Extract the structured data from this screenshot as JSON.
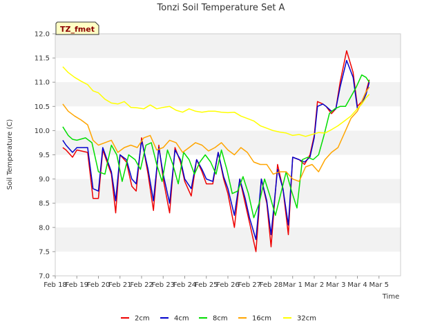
{
  "chart_data": {
    "type": "line",
    "title": "Tonzi Soil Temperature Set A",
    "xlabel": "Time",
    "ylabel": "Soil Temperature (C)",
    "badge": "TZ_fmet",
    "ylim": [
      7.0,
      12.0
    ],
    "yticks": [
      "7.0",
      "7.5",
      "8.0",
      "8.5",
      "9.0",
      "9.5",
      "10.0",
      "10.5",
      "11.0",
      "11.5",
      "12.0"
    ],
    "xlim": [
      0,
      16
    ],
    "xticks": [
      "Feb 18",
      "Feb 19",
      "Feb 20",
      "Feb 21",
      "Feb 22",
      "Feb 23",
      "Feb 24",
      "Feb 25",
      "Feb 26",
      "Feb 27",
      "Feb 28",
      "Mar 1",
      "Mar 2",
      "Mar 3",
      "Mar 4",
      "Mar 5"
    ],
    "grid": "horizontal bands",
    "legend_position": "bottom",
    "series": [
      {
        "name": "2cm",
        "color": "#ee0000",
        "x": [
          0.35,
          0.5,
          0.8,
          1.0,
          1.5,
          1.75,
          2.0,
          2.2,
          2.6,
          2.8,
          3.0,
          3.3,
          3.55,
          3.75,
          4.0,
          4.3,
          4.55,
          4.8,
          5.0,
          5.3,
          5.55,
          5.8,
          6.0,
          6.3,
          6.55,
          6.8,
          7.0,
          7.3,
          7.55,
          7.8,
          8.0,
          8.3,
          8.55,
          8.8,
          9.0,
          9.3,
          9.55,
          9.8,
          10.0,
          10.3,
          10.55,
          10.8,
          11.0,
          11.3,
          11.55,
          11.8,
          12.0,
          12.15,
          12.4,
          12.55,
          12.8,
          13.0,
          13.2,
          13.5,
          13.8,
          14.0,
          14.2,
          14.4,
          14.55
        ],
        "y": [
          9.65,
          9.6,
          9.45,
          9.6,
          9.55,
          8.6,
          8.6,
          9.6,
          9.1,
          8.3,
          9.5,
          9.35,
          8.85,
          8.75,
          9.85,
          9.1,
          8.35,
          9.7,
          9.0,
          8.3,
          9.65,
          9.35,
          8.95,
          8.65,
          9.4,
          9.15,
          8.9,
          8.9,
          9.55,
          9.0,
          8.7,
          8.0,
          9.0,
          8.5,
          8.1,
          7.5,
          9.0,
          8.5,
          7.6,
          9.3,
          8.8,
          7.85,
          9.45,
          9.4,
          9.3,
          9.5,
          9.9,
          10.6,
          10.55,
          10.5,
          10.35,
          10.45,
          11.0,
          11.65,
          11.2,
          10.5,
          10.6,
          10.8,
          11.05
        ]
      },
      {
        "name": "4cm",
        "color": "#0000cc",
        "x": [
          0.35,
          0.5,
          0.8,
          1.0,
          1.5,
          1.75,
          2.0,
          2.2,
          2.6,
          2.8,
          3.0,
          3.3,
          3.55,
          3.75,
          4.0,
          4.3,
          4.55,
          4.8,
          5.0,
          5.3,
          5.55,
          5.8,
          6.0,
          6.3,
          6.55,
          6.8,
          7.0,
          7.3,
          7.55,
          7.8,
          8.0,
          8.3,
          8.55,
          8.8,
          9.0,
          9.3,
          9.55,
          9.8,
          10.0,
          10.3,
          10.55,
          10.8,
          11.0,
          11.3,
          11.55,
          11.8,
          12.0,
          12.15,
          12.4,
          12.55,
          12.8,
          13.0,
          13.2,
          13.5,
          13.8,
          14.0,
          14.2,
          14.4,
          14.55
        ],
        "y": [
          9.8,
          9.7,
          9.55,
          9.65,
          9.65,
          8.8,
          8.75,
          9.65,
          9.15,
          8.55,
          9.5,
          9.4,
          9.0,
          8.9,
          9.8,
          9.2,
          8.55,
          9.65,
          9.1,
          8.5,
          9.6,
          9.4,
          9.0,
          8.8,
          9.4,
          9.2,
          9.0,
          8.95,
          9.55,
          9.05,
          8.8,
          8.25,
          9.0,
          8.6,
          8.2,
          7.75,
          9.0,
          8.55,
          7.85,
          9.2,
          8.8,
          8.05,
          9.45,
          9.4,
          9.35,
          9.45,
          9.85,
          10.5,
          10.55,
          10.5,
          10.4,
          10.45,
          10.9,
          11.45,
          11.1,
          10.45,
          10.55,
          10.75,
          11.0
        ]
      },
      {
        "name": "8cm",
        "color": "#00dd00",
        "x": [
          0.35,
          0.6,
          0.8,
          1.0,
          1.4,
          1.7,
          2.0,
          2.3,
          2.6,
          2.85,
          3.1,
          3.4,
          3.7,
          3.95,
          4.2,
          4.45,
          4.7,
          4.95,
          5.2,
          5.45,
          5.7,
          5.95,
          6.2,
          6.45,
          6.7,
          6.95,
          7.2,
          7.45,
          7.7,
          7.95,
          8.2,
          8.45,
          8.7,
          8.95,
          9.2,
          9.45,
          9.7,
          9.95,
          10.2,
          10.45,
          10.7,
          10.95,
          11.2,
          11.45,
          11.7,
          11.95,
          12.2,
          12.45,
          12.7,
          12.95,
          13.2,
          13.45,
          13.7,
          13.95,
          14.2,
          14.4,
          14.55
        ],
        "y": [
          10.08,
          9.9,
          9.82,
          9.8,
          9.85,
          9.75,
          9.15,
          9.1,
          9.7,
          9.5,
          8.95,
          9.5,
          9.4,
          9.2,
          9.7,
          9.75,
          9.3,
          8.95,
          9.6,
          9.3,
          8.9,
          9.55,
          9.4,
          9.1,
          9.35,
          9.5,
          9.35,
          9.1,
          9.6,
          9.2,
          8.7,
          8.75,
          9.05,
          8.7,
          8.2,
          8.5,
          9.0,
          8.65,
          8.25,
          8.7,
          9.15,
          8.75,
          8.4,
          9.4,
          9.45,
          9.4,
          9.5,
          9.9,
          10.35,
          10.45,
          10.5,
          10.5,
          10.7,
          10.9,
          11.15,
          11.1,
          11.0
        ]
      },
      {
        "name": "16cm",
        "color": "#ffa500",
        "x": [
          0.35,
          0.6,
          0.9,
          1.2,
          1.5,
          1.75,
          2.0,
          2.3,
          2.6,
          2.9,
          3.2,
          3.5,
          3.8,
          4.1,
          4.4,
          4.7,
          5.0,
          5.3,
          5.6,
          5.9,
          6.2,
          6.5,
          6.8,
          7.1,
          7.4,
          7.7,
          8.0,
          8.3,
          8.6,
          8.9,
          9.2,
          9.5,
          9.8,
          10.1,
          10.4,
          10.7,
          11.0,
          11.3,
          11.6,
          11.9,
          12.2,
          12.5,
          12.8,
          13.1,
          13.4,
          13.7,
          14.0,
          14.2,
          14.4,
          14.55
        ],
        "y": [
          10.55,
          10.4,
          10.3,
          10.22,
          10.12,
          9.8,
          9.7,
          9.75,
          9.8,
          9.55,
          9.65,
          9.7,
          9.65,
          9.85,
          9.9,
          9.6,
          9.65,
          9.8,
          9.75,
          9.55,
          9.65,
          9.75,
          9.7,
          9.58,
          9.65,
          9.75,
          9.6,
          9.5,
          9.65,
          9.55,
          9.35,
          9.3,
          9.3,
          9.1,
          9.15,
          9.15,
          9.0,
          8.95,
          9.25,
          9.3,
          9.15,
          9.4,
          9.55,
          9.65,
          9.95,
          10.25,
          10.4,
          10.6,
          10.8,
          10.9
        ]
      },
      {
        "name": "32cm",
        "color": "#ffff00",
        "x": [
          0.35,
          0.6,
          0.9,
          1.2,
          1.5,
          1.75,
          2.0,
          2.3,
          2.6,
          2.9,
          3.2,
          3.5,
          3.8,
          4.1,
          4.4,
          4.7,
          5.0,
          5.3,
          5.6,
          5.9,
          6.2,
          6.5,
          6.8,
          7.1,
          7.4,
          7.7,
          8.0,
          8.3,
          8.6,
          8.9,
          9.2,
          9.5,
          9.8,
          10.1,
          10.4,
          10.7,
          11.0,
          11.3,
          11.6,
          11.9,
          12.2,
          12.5,
          12.8,
          13.1,
          13.4,
          13.7,
          14.0,
          14.2,
          14.4,
          14.55
        ],
        "y": [
          11.32,
          11.2,
          11.1,
          11.02,
          10.95,
          10.82,
          10.78,
          10.65,
          10.57,
          10.55,
          10.6,
          10.48,
          10.47,
          10.45,
          10.53,
          10.45,
          10.48,
          10.5,
          10.42,
          10.38,
          10.45,
          10.4,
          10.38,
          10.4,
          10.4,
          10.38,
          10.37,
          10.38,
          10.3,
          10.25,
          10.2,
          10.1,
          10.05,
          10.0,
          9.97,
          9.95,
          9.9,
          9.92,
          9.88,
          9.92,
          9.96,
          9.95,
          10.02,
          10.1,
          10.2,
          10.3,
          10.45,
          10.55,
          10.68,
          10.75
        ]
      }
    ]
  }
}
